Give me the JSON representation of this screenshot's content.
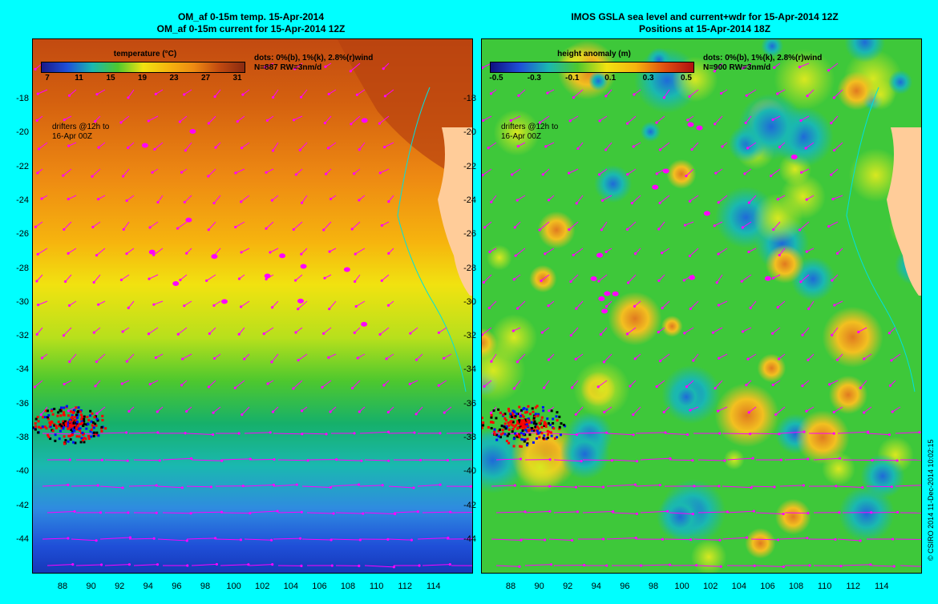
{
  "left": {
    "title_line1": "OM_af 0-15m temp. 15-Apr-2014",
    "title_line2": "OM_af 0-15m current for 15-Apr-2014 12Z",
    "colorbar_title": "temperature (°C)",
    "colorbar_ticks": [
      "7",
      "11",
      "15",
      "19",
      "23",
      "27",
      "31"
    ],
    "info_line1": "dots: 0%(b), 1%(k), 2.8%(r)wind",
    "info_line2": "N=887 RW=3nm/d",
    "drifters_line1": "drifters @12h to",
    "drifters_line2": "16-Apr 00Z"
  },
  "right": {
    "title_line1": "IMOS GSLA sea level and current+wdr for 15-Apr-2014 12Z",
    "title_line2": "Positions at 15-Apr-2014 18Z",
    "colorbar_title": "height anomaly (m)",
    "colorbar_ticks": [
      "-0.5",
      "-0.3",
      "-0.1",
      "0.1",
      "0.3",
      "0.5"
    ],
    "info_line1": "dots: 0%(b), 1%(k), 2.8%(r)wind",
    "info_line2": "N=900 RW=3nm/d",
    "drifters_line1": "drifters @12h to",
    "drifters_line2": "16-Apr 00Z"
  },
  "y_ticks": [
    "-18",
    "-20",
    "-22",
    "-24",
    "-26",
    "-28",
    "-30",
    "-32",
    "-34",
    "-36",
    "-38",
    "-40",
    "-42",
    "-44"
  ],
  "x_ticks": [
    "88",
    "90",
    "92",
    "94",
    "96",
    "98",
    "100",
    "102",
    "104",
    "106",
    "108",
    "110",
    "112",
    "114"
  ],
  "credit": "© CSIRO 2014   11-Dec-2014 10:02:15",
  "colors": {
    "background": "#00ffff",
    "land": "#ffcc99",
    "arrows": "#ff00ff",
    "coast": "#00e0e0"
  }
}
